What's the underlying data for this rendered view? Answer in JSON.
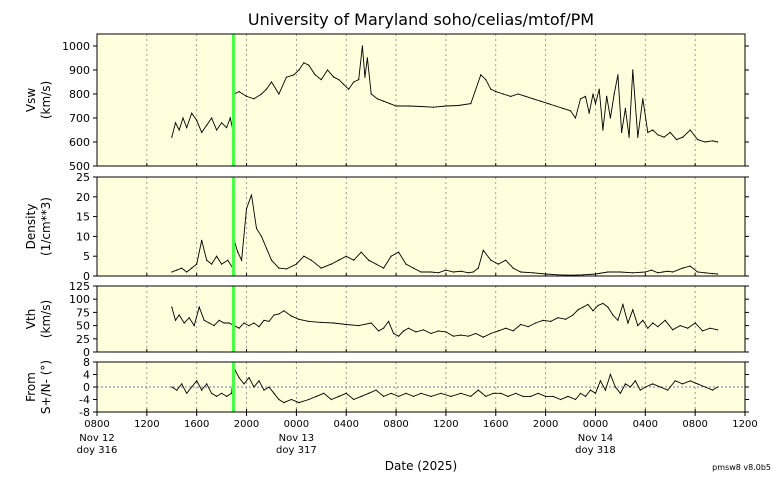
{
  "title": "University of Maryland  soho/celias/mtof/PM",
  "xlabel": "Date (2025)",
  "version": "pmsw8 v8.0b5",
  "x_ticks": [
    "0800",
    "1200",
    "1600",
    "2000",
    "0000",
    "0400",
    "0800",
    "1200",
    "1600",
    "2000",
    "0000",
    "0400",
    "0800",
    "1200"
  ],
  "day_labels": [
    {
      "date": "Nov 12",
      "doy": "doy 316"
    },
    {
      "date": "Nov 13",
      "doy": "doy 317"
    },
    {
      "date": "Nov 14",
      "doy": "doy 318"
    }
  ],
  "colors": {
    "panel_bg": "#ffffdd",
    "trace": "#000000",
    "marker": "#44ff44",
    "grid": "#888888"
  },
  "chart_data": {
    "type": "line",
    "x_unit": "hours since 2025-11-12 00:00 UT",
    "xlim": [
      8,
      60
    ],
    "marker_hour": 18.95,
    "grid": true,
    "panels": [
      {
        "key": "vsw",
        "ylabel_line1": "Vsw",
        "ylabel_line2": "(km/s)",
        "ylim": [
          500,
          1050
        ],
        "yticks": [
          500,
          600,
          700,
          800,
          900,
          1000
        ],
        "series": [
          {
            "x": [
              14.0,
              14.3,
              14.6,
              14.9,
              15.2,
              15.6,
              16.0,
              16.4,
              16.8,
              17.2,
              17.6,
              18.0,
              18.4,
              18.7,
              18.9,
              19.0,
              19.4,
              20.0,
              20.6,
              21.2,
              21.6,
              22.0,
              22.6,
              23.2,
              23.8,
              24.2,
              24.6,
              25.0,
              25.5,
              26.0,
              26.5,
              27.0,
              27.4,
              27.8,
              28.2,
              28.6,
              29.0,
              29.3,
              29.5,
              29.7,
              30.0,
              30.5,
              31.0,
              31.5,
              32.0,
              33.0,
              34.0,
              35.0,
              36.0,
              37.0,
              38.0,
              38.8,
              39.2,
              39.6,
              40.0,
              40.6,
              41.2,
              41.8,
              42.4,
              43.0,
              43.6,
              44.2,
              44.8,
              45.4,
              46.0,
              46.4,
              46.8,
              47.2,
              47.5,
              47.8,
              48.0,
              48.3,
              48.6,
              48.9,
              49.2,
              49.5,
              49.8,
              50.1,
              50.4,
              50.7,
              51.0,
              51.4,
              51.8,
              52.2,
              52.6,
              53.0,
              53.5,
              54.0,
              54.5,
              55.0,
              55.6,
              56.2,
              56.8,
              57.4,
              57.8
            ],
            "y": [
              620,
              680,
              650,
              700,
              660,
              720,
              690,
              640,
              670,
              700,
              650,
              680,
              660,
              700,
              650,
              800,
              810,
              790,
              780,
              800,
              820,
              850,
              800,
              870,
              880,
              900,
              930,
              920,
              880,
              860,
              900,
              870,
              860,
              840,
              820,
              850,
              860,
              1000,
              870,
              950,
              800,
              780,
              770,
              760,
              750,
              750,
              748,
              745,
              750,
              752,
              760,
              880,
              860,
              820,
              810,
              800,
              790,
              800,
              790,
              780,
              770,
              760,
              750,
              740,
              730,
              700,
              780,
              790,
              720,
              800,
              760,
              820,
              650,
              790,
              700,
              800,
              880,
              640,
              740,
              620,
              900,
              620,
              780,
              640,
              650,
              630,
              620,
              640,
              610,
              620,
              650,
              610,
              600,
              605,
              600
            ]
          }
        ]
      },
      {
        "key": "density",
        "ylabel_line1": "Density",
        "ylabel_line2": "(1/cm**3)",
        "ylim": [
          0,
          25
        ],
        "yticks": [
          0,
          5,
          10,
          15,
          20,
          25
        ],
        "series": [
          {
            "x": [
              14.0,
              14.4,
              14.8,
              15.2,
              15.6,
              16.0,
              16.4,
              16.8,
              17.2,
              17.6,
              18.0,
              18.5,
              18.9,
              19.0,
              19.3,
              19.6,
              20.0,
              20.4,
              20.8,
              21.2,
              21.6,
              22.0,
              22.6,
              23.2,
              24.0,
              24.6,
              25.2,
              26.0,
              26.8,
              27.4,
              28.0,
              28.6,
              29.2,
              29.8,
              30.4,
              31.0,
              31.6,
              32.2,
              32.8,
              33.4,
              34.0,
              34.8,
              35.4,
              36.0,
              36.6,
              37.2,
              37.8,
              38.2,
              38.6,
              39.0,
              39.6,
              40.2,
              40.8,
              41.4,
              42.0,
              43.0,
              44.0,
              45.0,
              46.0,
              47.0,
              48.0,
              49.0,
              50.0,
              51.0,
              52.0,
              52.5,
              53.0,
              53.4,
              53.8,
              54.2,
              55.0,
              55.6,
              56.2,
              56.8,
              57.4,
              57.8
            ],
            "y": [
              1.0,
              1.5,
              2.0,
              1.0,
              2.0,
              3.0,
              9.0,
              4.0,
              3.0,
              5.0,
              3.0,
              4.0,
              2.0,
              9.0,
              6.0,
              4.0,
              17.0,
              20.5,
              12.0,
              10.0,
              7.0,
              4.0,
              2.0,
              1.8,
              3.0,
              5.0,
              4.0,
              2.0,
              3.0,
              4.0,
              5.0,
              4.0,
              6.0,
              4.0,
              3.0,
              2.0,
              5.0,
              6.0,
              3.0,
              2.0,
              1.0,
              1.0,
              0.8,
              1.5,
              1.0,
              1.2,
              0.8,
              1.0,
              2.0,
              6.5,
              4.0,
              3.0,
              4.0,
              2.0,
              1.0,
              0.8,
              0.5,
              0.3,
              0.2,
              0.3,
              0.5,
              1.0,
              1.0,
              0.8,
              1.0,
              1.5,
              0.8,
              1.0,
              1.2,
              1.0,
              2.0,
              2.5,
              1.0,
              0.8,
              0.6,
              0.5
            ]
          }
        ]
      },
      {
        "key": "vth",
        "ylabel_line1": "Vth",
        "ylabel_line2": "(km/s)",
        "ylim": [
          0,
          125
        ],
        "yticks": [
          0,
          25,
          50,
          75,
          100,
          125
        ],
        "series": [
          {
            "x": [
              14.0,
              14.3,
              14.6,
              15.0,
              15.4,
              15.8,
              16.2,
              16.6,
              17.0,
              17.4,
              17.8,
              18.2,
              18.6,
              19.0,
              19.4,
              19.8,
              20.2,
              20.6,
              21.0,
              21.4,
              21.8,
              22.2,
              22.6,
              23.0,
              23.6,
              24.2,
              25.0,
              26.0,
              27.0,
              28.0,
              29.0,
              30.0,
              30.6,
              31.0,
              31.4,
              31.8,
              32.2,
              32.6,
              33.0,
              33.6,
              34.2,
              34.8,
              35.4,
              36.0,
              36.6,
              37.2,
              37.8,
              38.4,
              39.0,
              39.6,
              40.2,
              40.8,
              41.4,
              42.0,
              42.6,
              43.2,
              43.8,
              44.4,
              45.0,
              45.6,
              46.2,
              46.6,
              47.0,
              47.4,
              47.8,
              48.2,
              48.6,
              49.0,
              49.4,
              49.8,
              50.2,
              50.6,
              51.0,
              51.4,
              51.8,
              52.2,
              52.6,
              53.0,
              53.6,
              54.2,
              54.8,
              55.4,
              56.0,
              56.6,
              57.2,
              57.8
            ],
            "y": [
              85,
              60,
              70,
              55,
              65,
              50,
              85,
              60,
              55,
              50,
              60,
              55,
              55,
              50,
              45,
              55,
              50,
              55,
              48,
              60,
              58,
              70,
              72,
              78,
              68,
              62,
              58,
              56,
              55,
              52,
              50,
              55,
              40,
              45,
              58,
              35,
              30,
              40,
              45,
              38,
              42,
              35,
              40,
              38,
              30,
              32,
              30,
              35,
              28,
              35,
              40,
              45,
              40,
              52,
              48,
              55,
              60,
              58,
              65,
              62,
              70,
              80,
              85,
              90,
              78,
              88,
              92,
              85,
              70,
              60,
              90,
              55,
              80,
              50,
              60,
              45,
              55,
              48,
              60,
              42,
              50,
              45,
              55,
              40,
              45,
              42
            ]
          }
        ]
      },
      {
        "key": "flow_dir",
        "ylabel_line1": "From",
        "ylabel_line2": "S+/N- (°)",
        "ylim": [
          -8,
          8
        ],
        "yticks": [
          -8,
          -4,
          0,
          4,
          8
        ],
        "series": [
          {
            "x": [
              14.0,
              14.4,
              14.8,
              15.2,
              15.6,
              16.0,
              16.4,
              16.8,
              17.2,
              17.6,
              18.0,
              18.4,
              18.8,
              19.0,
              19.4,
              19.8,
              20.2,
              20.6,
              21.0,
              21.4,
              21.8,
              22.2,
              22.6,
              23.0,
              23.6,
              24.2,
              25.0,
              25.6,
              26.2,
              26.8,
              27.4,
              28.0,
              28.6,
              29.2,
              29.8,
              30.4,
              31.0,
              31.6,
              32.2,
              32.8,
              33.4,
              34.0,
              34.8,
              35.6,
              36.4,
              37.2,
              38.0,
              38.6,
              39.2,
              39.8,
              40.4,
              41.0,
              41.6,
              42.2,
              42.8,
              43.4,
              44.0,
              44.6,
              45.2,
              45.8,
              46.4,
              46.8,
              47.2,
              47.6,
              48.0,
              48.4,
              48.8,
              49.2,
              49.6,
              50.0,
              50.4,
              50.8,
              51.2,
              51.6,
              52.0,
              52.6,
              53.2,
              53.8,
              54.4,
              55.0,
              55.6,
              56.2,
              56.8,
              57.4,
              57.8
            ],
            "y": [
              0,
              -1,
              1,
              -2,
              0,
              2,
              -1,
              1,
              -2,
              -3,
              -2,
              -3,
              -2,
              6,
              3,
              1,
              3,
              0,
              2,
              -1,
              0,
              -2,
              -4,
              -5,
              -4,
              -5,
              -4,
              -3,
              -2,
              -4,
              -3,
              -2,
              -4,
              -3,
              -2,
              -1,
              -3,
              -2,
              -3,
              -2,
              -3,
              -2,
              -3,
              -2,
              -3,
              -2,
              -3,
              -1,
              -3,
              -2,
              -2,
              -3,
              -2,
              -3,
              -3,
              -2,
              -3,
              -3,
              -4,
              -3,
              -4,
              -2,
              -3,
              -1,
              -2,
              2,
              -1,
              4,
              0,
              -2,
              1,
              0,
              2,
              -1,
              0,
              1,
              0,
              -1,
              2,
              1,
              2,
              1,
              0,
              -1,
              0
            ]
          }
        ]
      }
    ]
  }
}
